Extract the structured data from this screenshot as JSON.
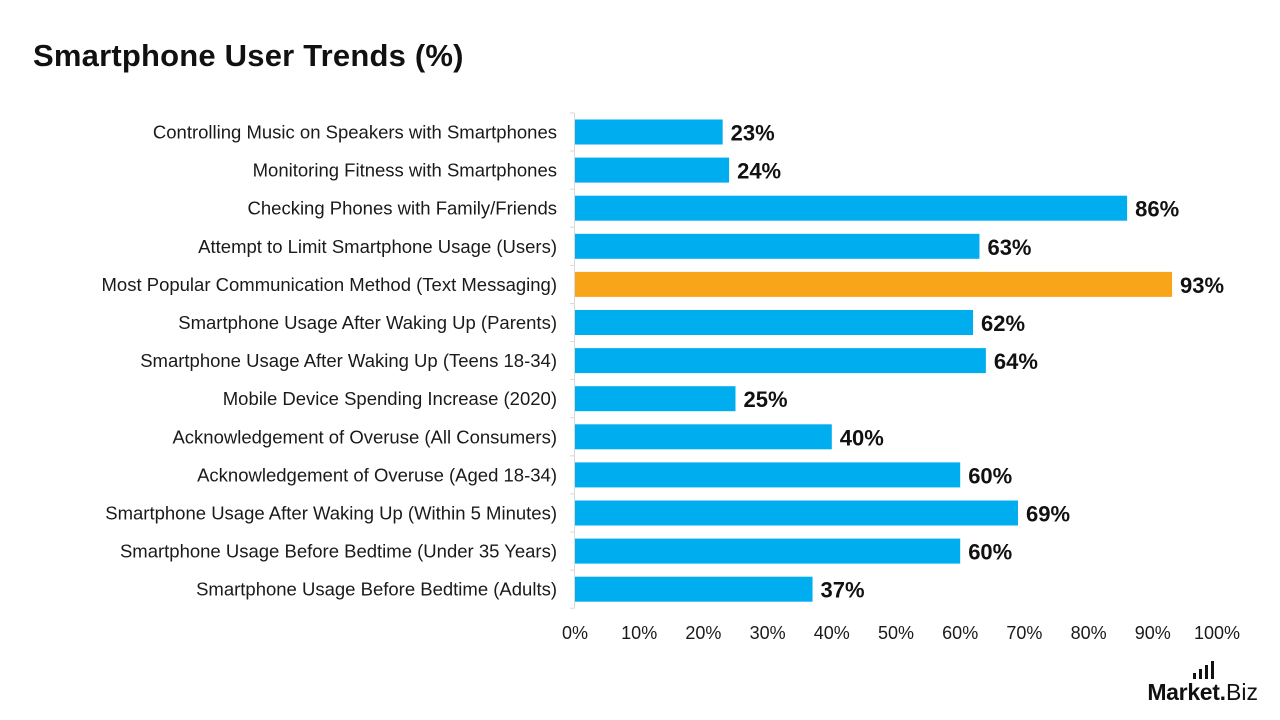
{
  "chart_data": {
    "type": "bar",
    "orientation": "horizontal",
    "title": "Smartphone User Trends (%)",
    "categories": [
      "Controlling Music on Speakers with Smartphones",
      "Monitoring Fitness with Smartphones",
      "Checking Phones with Family/Friends",
      "Attempt to Limit Smartphone Usage (Users)",
      "Most Popular Communication Method (Text Messaging)",
      "Smartphone Usage After Waking Up (Parents)",
      "Smartphone Usage After Waking Up (Teens 18-34)",
      "Mobile Device Spending Increase (2020)",
      "Acknowledgement of Overuse (All Consumers)",
      "Acknowledgement of Overuse (Aged 18-34)",
      "Smartphone Usage After Waking Up (Within 5 Minutes)",
      "Smartphone Usage Before Bedtime (Under 35 Years)",
      "Smartphone Usage Before Bedtime (Adults)"
    ],
    "values": [
      23,
      24,
      86,
      63,
      93,
      62,
      64,
      25,
      40,
      60,
      69,
      60,
      37
    ],
    "value_labels": [
      "23%",
      "24%",
      "86%",
      "63%",
      "93%",
      "62%",
      "64%",
      "25%",
      "40%",
      "60%",
      "69%",
      "60%",
      "37%"
    ],
    "highlight_index": 4,
    "xlim": [
      0,
      100
    ],
    "x_ticks": [
      0,
      10,
      20,
      30,
      40,
      50,
      60,
      70,
      80,
      90,
      100
    ],
    "x_tick_labels": [
      "0%",
      "10%",
      "20%",
      "30%",
      "40%",
      "50%",
      "60%",
      "70%",
      "80%",
      "90%",
      "100%"
    ],
    "xlabel": "",
    "ylabel": "",
    "grid": false,
    "colors": {
      "bar": "#00AEEF",
      "highlight": "#F9A51A",
      "axis": "#D9D9D9"
    }
  },
  "branding": {
    "logo_main": "Market",
    "logo_dot": ".",
    "logo_suffix": "Biz"
  }
}
